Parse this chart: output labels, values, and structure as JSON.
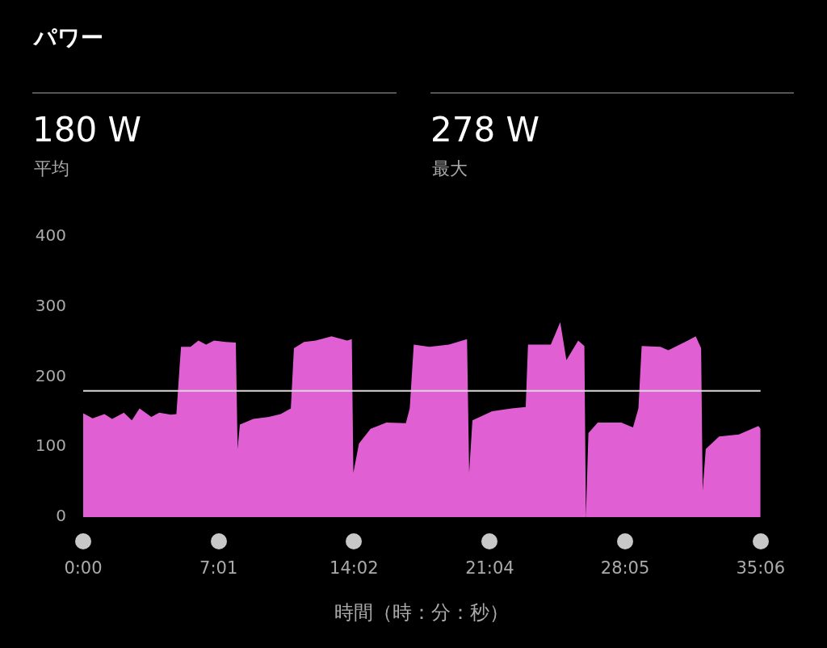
{
  "chart_data": {
    "type": "area",
    "title": "パワー",
    "xlabel": "時間（時：分：秒）",
    "annotations": [
      "180 W",
      "平均",
      "278 W",
      "最大"
    ],
    "xlim": [
      0,
      35.1
    ],
    "xticks": [
      {
        "value": 0,
        "label": "0:00"
      },
      {
        "value": 7.0167,
        "label": "7:01"
      },
      {
        "value": 14.033,
        "label": "14:02"
      },
      {
        "value": 21.067,
        "label": "21:04"
      },
      {
        "value": 28.083,
        "label": "28:05"
      },
      {
        "value": 35.1,
        "label": "35:06"
      }
    ],
    "ylim": [
      0,
      400
    ],
    "yticks": [
      0,
      100,
      200,
      300,
      400
    ],
    "legend": false,
    "ref_lines": [
      {
        "axis": "y",
        "value": 180,
        "color": "#d8d8d8"
      }
    ],
    "series": [
      {
        "color": "#e060d4",
        "x": [
          0,
          0.49,
          1.1,
          1.5,
          2.11,
          2.52,
          2.92,
          3.53,
          3.94,
          4.55,
          4.83,
          4.99,
          5.07,
          5.56,
          5.97,
          6.37,
          6.78,
          7.39,
          7.91,
          8.0,
          8.12,
          8.81,
          9.62,
          10.23,
          10.76,
          10.92,
          11.44,
          12.05,
          12.87,
          13.68,
          13.92,
          14.0,
          14.29,
          14.89,
          15.71,
          16.72,
          16.92,
          17.13,
          17.94,
          18.95,
          19.89,
          20.0,
          20.17,
          21.19,
          22.2,
          22.93,
          23.05,
          24.23,
          24.72,
          25.04,
          25.65,
          25.97,
          26.05,
          26.18,
          26.66,
          27.88,
          28.49,
          28.77,
          28.94,
          29.91,
          30.32,
          31.33,
          31.74,
          32.02,
          32.1,
          32.26,
          32.95,
          33.97,
          34.99,
          35.1
        ],
        "values": [
          148,
          141,
          147,
          140,
          149,
          138,
          155,
          143,
          149,
          146,
          147,
          212,
          243,
          243,
          252,
          246,
          252,
          250,
          249,
          97,
          132,
          140,
          143,
          147,
          155,
          241,
          250,
          252,
          258,
          252,
          254,
          63,
          105,
          126,
          135,
          134,
          155,
          246,
          243,
          246,
          254,
          63,
          138,
          151,
          155,
          157,
          246,
          246,
          278,
          224,
          252,
          244,
          0,
          120,
          135,
          135,
          128,
          155,
          244,
          243,
          238,
          252,
          258,
          241,
          38,
          97,
          115,
          118,
          130,
          126
        ]
      }
    ]
  }
}
